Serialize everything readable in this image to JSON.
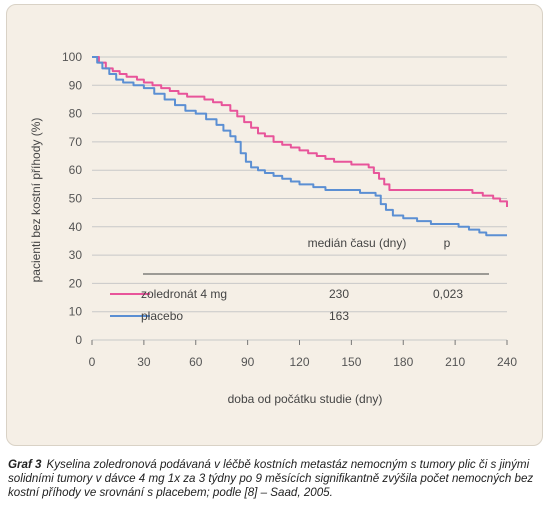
{
  "chart_data": {
    "type": "line",
    "xlabel": "doba od počátku studie (dny)",
    "ylabel": "pacienti bez kostní příhody (%)",
    "xlim": [
      0,
      240
    ],
    "ylim": [
      0,
      100
    ],
    "x_ticks": [
      "0",
      "30",
      "60",
      "90",
      "120",
      "150",
      "180",
      "210",
      "240"
    ],
    "y_ticks": [
      "0",
      "10",
      "20",
      "30",
      "40",
      "50",
      "60",
      "70",
      "80",
      "90",
      "100"
    ],
    "series": [
      {
        "name": "zoledronát 4 mg",
        "color": "#e8549a",
        "points": [
          [
            0,
            100
          ],
          [
            4,
            98
          ],
          [
            8,
            96
          ],
          [
            12,
            95
          ],
          [
            16,
            94
          ],
          [
            20,
            93
          ],
          [
            26,
            92
          ],
          [
            30,
            91
          ],
          [
            35,
            90
          ],
          [
            40,
            89
          ],
          [
            45,
            88
          ],
          [
            50,
            87
          ],
          [
            55,
            86
          ],
          [
            60,
            86
          ],
          [
            65,
            85
          ],
          [
            70,
            84
          ],
          [
            75,
            83
          ],
          [
            80,
            81
          ],
          [
            84,
            79
          ],
          [
            88,
            77
          ],
          [
            92,
            75
          ],
          [
            96,
            73
          ],
          [
            100,
            72
          ],
          [
            105,
            70
          ],
          [
            110,
            69
          ],
          [
            115,
            68
          ],
          [
            120,
            67
          ],
          [
            125,
            66
          ],
          [
            130,
            65
          ],
          [
            135,
            64
          ],
          [
            140,
            63
          ],
          [
            145,
            63
          ],
          [
            150,
            62
          ],
          [
            155,
            62
          ],
          [
            160,
            61
          ],
          [
            163,
            59
          ],
          [
            166,
            57
          ],
          [
            169,
            55
          ],
          [
            172,
            53
          ],
          [
            180,
            53
          ],
          [
            190,
            53
          ],
          [
            200,
            53
          ],
          [
            210,
            53
          ],
          [
            220,
            52
          ],
          [
            226,
            51
          ],
          [
            232,
            50
          ],
          [
            236,
            49
          ],
          [
            240,
            47
          ]
        ]
      },
      {
        "name": "placebo",
        "color": "#5b8fd3",
        "points": [
          [
            0,
            100
          ],
          [
            3,
            98
          ],
          [
            6,
            96
          ],
          [
            10,
            94
          ],
          [
            14,
            92
          ],
          [
            18,
            91
          ],
          [
            24,
            90
          ],
          [
            30,
            89
          ],
          [
            36,
            87
          ],
          [
            42,
            85
          ],
          [
            48,
            83
          ],
          [
            54,
            81
          ],
          [
            60,
            80
          ],
          [
            66,
            78
          ],
          [
            72,
            76
          ],
          [
            76,
            74
          ],
          [
            80,
            72
          ],
          [
            83,
            70
          ],
          [
            86,
            66
          ],
          [
            89,
            63
          ],
          [
            92,
            61
          ],
          [
            96,
            60
          ],
          [
            100,
            59
          ],
          [
            105,
            58
          ],
          [
            110,
            57
          ],
          [
            115,
            56
          ],
          [
            120,
            55
          ],
          [
            128,
            54
          ],
          [
            135,
            53
          ],
          [
            140,
            53
          ],
          [
            150,
            53
          ],
          [
            155,
            52
          ],
          [
            160,
            52
          ],
          [
            164,
            51
          ],
          [
            167,
            48
          ],
          [
            170,
            46
          ],
          [
            174,
            44
          ],
          [
            180,
            43
          ],
          [
            188,
            42
          ],
          [
            196,
            41
          ],
          [
            204,
            41
          ],
          [
            212,
            40
          ],
          [
            218,
            39
          ],
          [
            224,
            38
          ],
          [
            228,
            37
          ],
          [
            234,
            37
          ],
          [
            240,
            37
          ]
        ]
      }
    ],
    "annotation": {
      "header_median": "medián času (dny)",
      "header_p": "p",
      "rows": [
        {
          "label": "zoledronát 4 mg",
          "median": "230",
          "p": "0,023"
        },
        {
          "label": "placebo",
          "median": "163",
          "p": ""
        }
      ]
    }
  },
  "caption": {
    "label": "Graf 3",
    "text": "Kyselina zoledronová podávaná v léčbě kostních metastáz nemocným s tumory plic či s jinými solidními tumory v dávce 4 mg 1x za 3 týdny po 9 měsících signifikantně zvýšila počet nemocných bez kostní příhody ve srovnání s placebem; podle [8] – Saad, 2005."
  }
}
